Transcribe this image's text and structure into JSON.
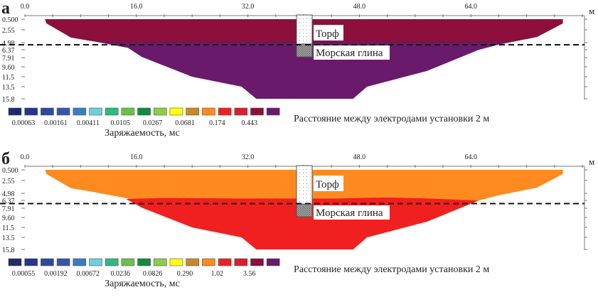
{
  "chart_data": {
    "type": "heatmap",
    "unit_label": "м",
    "x_ticks": [
      "0.0",
      "16.0",
      "32.0",
      "48.0",
      "64.0"
    ],
    "x_tick_values": [
      0,
      16,
      32,
      48,
      64
    ],
    "x_range": [
      0,
      80.5
    ],
    "depth_ticks": [
      "0.500",
      "2.55",
      "4.98",
      "6.37",
      "7.91",
      "9.60",
      "11.5",
      "13.5",
      "15.8"
    ],
    "depth_tick_values": [
      0.5,
      2.55,
      4.98,
      6.37,
      7.91,
      9.6,
      11.5,
      13.5,
      15.8
    ],
    "legend_colors": [
      "#1f2a6b",
      "#243590",
      "#2e48a0",
      "#3556a8",
      "#3a7cc4",
      "#6fcfdc",
      "#2dba80",
      "#6cc04a",
      "#138a3e",
      "#8ccc4a",
      "#ffff10",
      "#c88a28",
      "#ff8a20",
      "#f02020",
      "#d62030",
      "#8c0f3c",
      "#6a1a6a"
    ],
    "legend_title": "Заряжаемость, мс",
    "caption": "Расстояние между электродами установки 2 м",
    "borehole_labels": {
      "peat": "Торф",
      "clay": "Морская глина"
    },
    "panels": [
      {
        "letter": "а",
        "legend_values": [
          "0.00063",
          "0.00161",
          "0.00411",
          "0.0105",
          "0.0267",
          "0.0681",
          "0.174",
          "0.443"
        ],
        "water_level_depth": 5.4,
        "regions": [
          {
            "color": "#6a1a6a",
            "polygon": [
              [
                2.9,
                0.5
              ],
              [
                77.2,
                0.5
              ],
              [
                77.2,
                1.3
              ],
              [
                73.5,
                3.9
              ],
              [
                67.9,
                5.4
              ],
              [
                65.1,
                6.4
              ],
              [
                57.7,
                10.4
              ],
              [
                49.1,
                13.5
              ],
              [
                47.1,
                15.8
              ],
              [
                33.2,
                15.8
              ],
              [
                31.1,
                13.5
              ],
              [
                24,
                11.5
              ],
              [
                16.8,
                7.8
              ],
              [
                14.8,
                6.0
              ],
              [
                9.7,
                4.7
              ],
              [
                6.6,
                4.0
              ],
              [
                3.1,
                1.3
              ]
            ]
          },
          {
            "color": "#8c0f3c",
            "polygon": [
              [
                2.9,
                0.5
              ],
              [
                77.2,
                0.5
              ],
              [
                77.2,
                1.3
              ],
              [
                73.5,
                3.9
              ],
              [
                69.5,
                4.9
              ],
              [
                11,
                4.9
              ],
              [
                9.7,
                4.7
              ],
              [
                6.6,
                4.0
              ],
              [
                3.1,
                1.3
              ]
            ]
          }
        ]
      },
      {
        "letter": "б",
        "legend_values": [
          "0.00055",
          "0.00192",
          "0.00672",
          "0.0236",
          "0.0826",
          "0.290",
          "1.02",
          "3.56"
        ],
        "water_level_depth": 7.0,
        "regions": [
          {
            "color": "#ff8a20",
            "polygon": [
              [
                2.9,
                0.5
              ],
              [
                77.2,
                0.5
              ],
              [
                77.2,
                1.3
              ],
              [
                73.5,
                3.9
              ],
              [
                67.9,
                5.4
              ],
              [
                65.1,
                6.4
              ],
              [
                57.7,
                10.4
              ],
              [
                49.1,
                13.5
              ],
              [
                47.1,
                15.8
              ],
              [
                33.2,
                15.8
              ],
              [
                31.1,
                13.5
              ],
              [
                24,
                11.5
              ],
              [
                16.8,
                7.8
              ],
              [
                14.8,
                6.0
              ],
              [
                9.7,
                4.7
              ],
              [
                6.6,
                4.0
              ],
              [
                3.1,
                1.3
              ]
            ]
          },
          {
            "color": "#f02020",
            "polygon": [
              [
                14.5,
                6.1
              ],
              [
                20,
                5.9
              ],
              [
                30,
                6.0
              ],
              [
                45,
                6.0
              ],
              [
                52,
                5.8
              ],
              [
                58,
                6.0
              ],
              [
                65.1,
                6.4
              ],
              [
                57.7,
                10.4
              ],
              [
                49.1,
                13.5
              ],
              [
                47.1,
                15.8
              ],
              [
                33.2,
                15.8
              ],
              [
                31.1,
                13.5
              ],
              [
                24,
                11.5
              ],
              [
                16.8,
                7.8
              ]
            ]
          }
        ]
      }
    ]
  }
}
